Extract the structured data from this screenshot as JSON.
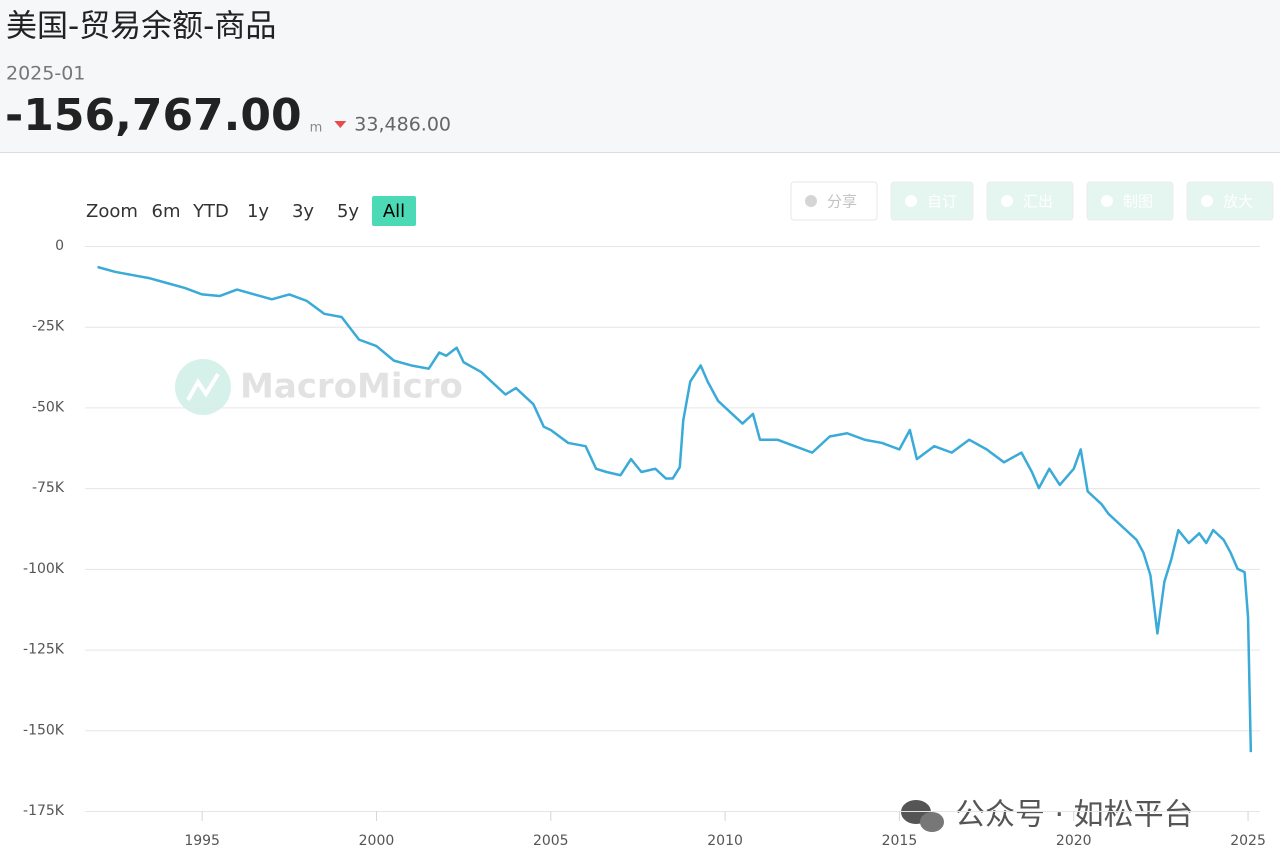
{
  "header": {
    "title": "美国-贸易余额-商品",
    "date": "2025-01",
    "value": "-156,767.00",
    "unit": "m",
    "change": "33,486.00"
  },
  "toolbar": {
    "zoom_label": "Zoom",
    "ranges": [
      "6m",
      "YTD",
      "1y",
      "3y",
      "5y",
      "All"
    ],
    "active_range": 5,
    "actions": [
      "分享",
      "自订",
      "汇出",
      "制图",
      "放大"
    ]
  },
  "watermarks": [
    "MacroMicro",
    "公众号 · 如松平台"
  ],
  "chart_data": {
    "type": "line",
    "color": "#3aaad8",
    "x": [
      1992.0,
      1992.5,
      1993.0,
      1993.5,
      1994.0,
      1994.5,
      1995.0,
      1995.5,
      1996.0,
      1996.5,
      1997.0,
      1997.5,
      1998.0,
      1998.5,
      1999.0,
      1999.5,
      2000.0,
      2000.5,
      2001.0,
      2001.5,
      2001.8,
      2002.0,
      2002.3,
      2002.5,
      2003.0,
      2003.5,
      2003.7,
      2004.0,
      2004.5,
      2004.8,
      2005.0,
      2005.5,
      2006.0,
      2006.3,
      2006.6,
      2007.0,
      2007.3,
      2007.6,
      2008.0,
      2008.3,
      2008.5,
      2008.7,
      2008.8,
      2009.0,
      2009.3,
      2009.5,
      2009.8,
      2010.0,
      2010.5,
      2010.8,
      2011.0,
      2011.5,
      2012.0,
      2012.5,
      2013.0,
      2013.5,
      2014.0,
      2014.5,
      2015.0,
      2015.3,
      2015.5,
      2016.0,
      2016.5,
      2017.0,
      2017.5,
      2018.0,
      2018.5,
      2018.8,
      2019.0,
      2019.3,
      2019.6,
      2020.0,
      2020.2,
      2020.4,
      2020.8,
      2021.0,
      2021.5,
      2021.8,
      2022.0,
      2022.2,
      2022.4,
      2022.6,
      2022.8,
      2023.0,
      2023.3,
      2023.6,
      2023.8,
      2024.0,
      2024.3,
      2024.5,
      2024.7,
      2024.9,
      2025.0,
      2025.08
    ],
    "values": [
      -6500,
      -8000,
      -9000,
      -10000,
      -11500,
      -13000,
      -15000,
      -15500,
      -13500,
      -15000,
      -16500,
      -15000,
      -17000,
      -21000,
      -22000,
      -29000,
      -31000,
      -35500,
      -37000,
      -38000,
      -33000,
      -34000,
      -31500,
      -36000,
      -39000,
      -44000,
      -46000,
      -44000,
      -49000,
      -56000,
      -57000,
      -61000,
      -62000,
      -69000,
      -70000,
      -71000,
      -66000,
      -70000,
      -69000,
      -72000,
      -72000,
      -68500,
      -54000,
      -42000,
      -37000,
      -42000,
      -48000,
      -50000,
      -55000,
      -52000,
      -60000,
      -60000,
      -62000,
      -64000,
      -59000,
      -58000,
      -60000,
      -61000,
      -63000,
      -57000,
      -66000,
      -62000,
      -64000,
      -60000,
      -63000,
      -67000,
      -64000,
      -70000,
      -75000,
      -69000,
      -74000,
      -69000,
      -63000,
      -76000,
      -80000,
      -83000,
      -88000,
      -91000,
      -95000,
      -102000,
      -120000,
      -104000,
      -97000,
      -88000,
      -92000,
      -89000,
      -92000,
      -88000,
      -91000,
      -95000,
      -100000,
      -101000,
      -115000,
      -156767
    ],
    "xlim": [
      1991.64,
      2025.4
    ],
    "xticks": [
      1995,
      2000,
      2005,
      2010,
      2015,
      2020,
      2025
    ],
    "ylim": [
      -175000,
      0
    ],
    "yticks": [
      0,
      {
        "value": -25000,
        "label": "-25K"
      },
      {
        "value": -50000,
        "label": "-50K"
      },
      {
        "value": -75000,
        "label": "-75K"
      },
      {
        "value": -100000,
        "label": "-100K"
      },
      {
        "value": -125000,
        "label": "-125K"
      },
      {
        "value": -150000,
        "label": "-150K"
      },
      {
        "value": -175000,
        "label": "-175K"
      }
    ],
    "grid": true
  }
}
